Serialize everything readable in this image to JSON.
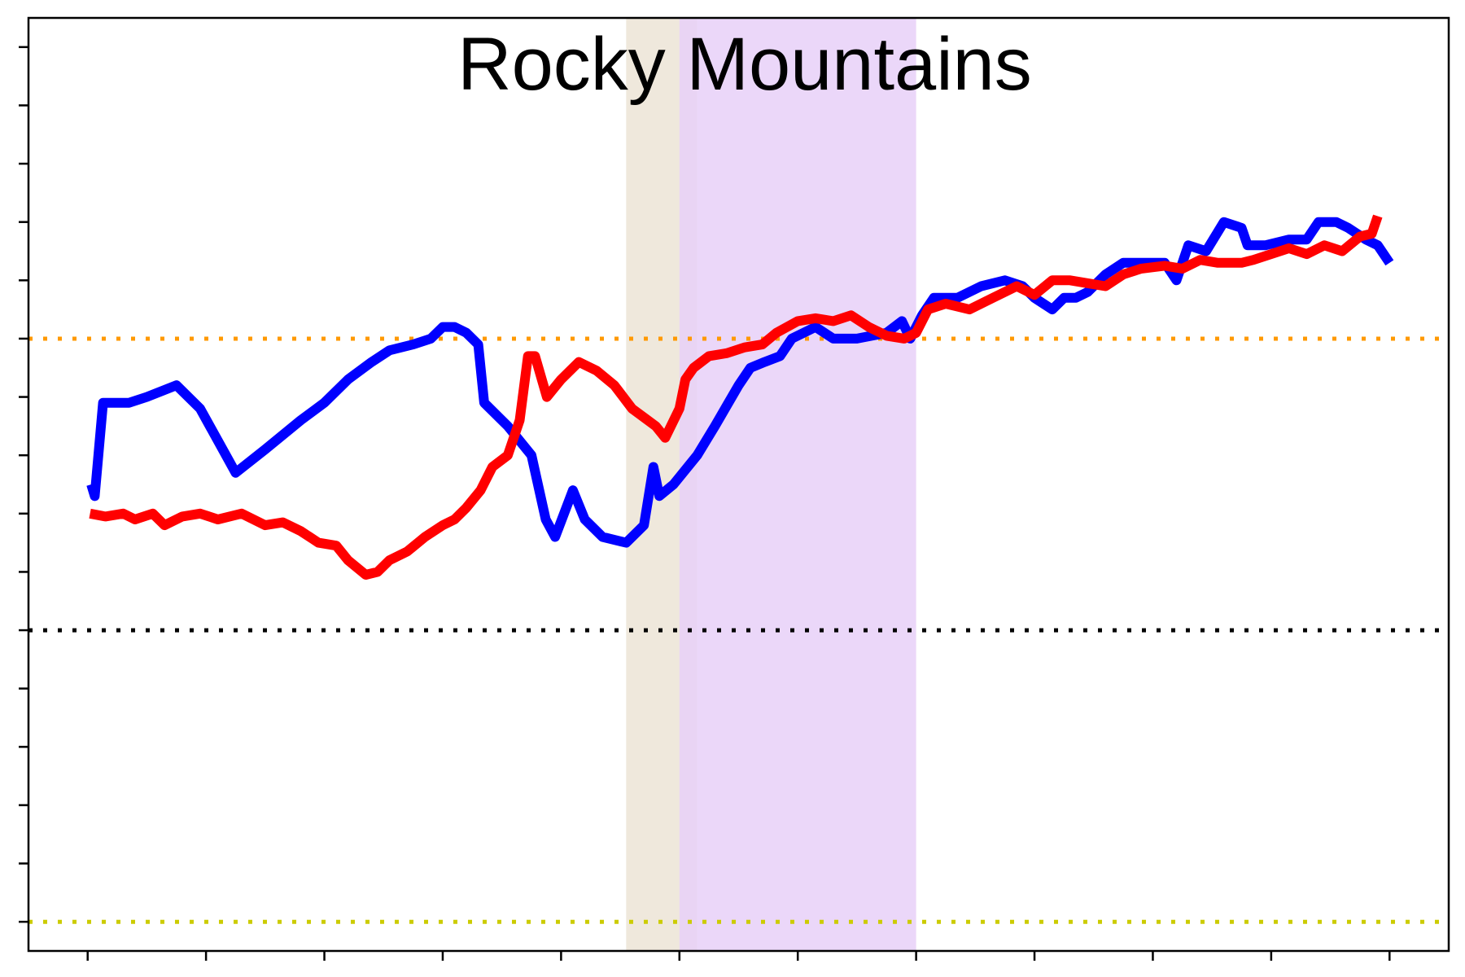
{
  "chart_data": {
    "type": "line",
    "title": "Rocky Mountains",
    "xlabel": "",
    "ylabel": "",
    "xlim": [
      0.5,
      12.5
    ],
    "ylim": [
      -0.5,
      15.5
    ],
    "x_ticks": [
      1,
      2,
      3,
      4,
      5,
      6,
      7,
      8,
      9,
      10,
      11,
      12
    ],
    "y_ticks": [
      0,
      1,
      2,
      3,
      4,
      5,
      6,
      7,
      8,
      9,
      10,
      11,
      12,
      13,
      14,
      15
    ],
    "tick_labels_visible": false,
    "grid": false,
    "legend": "none",
    "reference_lines": [
      {
        "y": 10,
        "color": "#ff9900",
        "style": "dotted"
      },
      {
        "y": 5,
        "color": "#000000",
        "style": "dotted"
      },
      {
        "y": 0,
        "color": "#cccc00",
        "style": "dotted"
      }
    ],
    "shaded_regions": [
      {
        "x": [
          5.55,
          6.15
        ],
        "color": "#ece4d6"
      },
      {
        "x": [
          6.0,
          8.0
        ],
        "color": "#e8d0f8"
      }
    ],
    "series": [
      {
        "color": "#0000ff",
        "points": [
          [
            1.03,
            7.5
          ],
          [
            1.06,
            7.3
          ],
          [
            1.13,
            8.9
          ],
          [
            1.2,
            8.9
          ],
          [
            1.35,
            8.9
          ],
          [
            1.5,
            9.0
          ],
          [
            1.75,
            9.2
          ],
          [
            1.95,
            8.8
          ],
          [
            2.25,
            7.7
          ],
          [
            2.5,
            8.1
          ],
          [
            2.8,
            8.6
          ],
          [
            3.0,
            8.9
          ],
          [
            3.2,
            9.3
          ],
          [
            3.4,
            9.6
          ],
          [
            3.55,
            9.8
          ],
          [
            3.75,
            9.9
          ],
          [
            3.9,
            10.0
          ],
          [
            4.0,
            10.2
          ],
          [
            4.1,
            10.2
          ],
          [
            4.2,
            10.1
          ],
          [
            4.3,
            9.9
          ],
          [
            4.35,
            8.9
          ],
          [
            4.55,
            8.5
          ],
          [
            4.75,
            8.0
          ],
          [
            4.87,
            6.9
          ],
          [
            4.95,
            6.6
          ],
          [
            5.1,
            7.4
          ],
          [
            5.2,
            6.9
          ],
          [
            5.35,
            6.6
          ],
          [
            5.55,
            6.5
          ],
          [
            5.7,
            6.8
          ],
          [
            5.78,
            7.8
          ],
          [
            5.83,
            7.3
          ],
          [
            5.95,
            7.5
          ],
          [
            6.15,
            8.0
          ],
          [
            6.3,
            8.5
          ],
          [
            6.5,
            9.2
          ],
          [
            6.6,
            9.5
          ],
          [
            6.72,
            9.6
          ],
          [
            6.85,
            9.7
          ],
          [
            6.95,
            10.0
          ],
          [
            7.15,
            10.2
          ],
          [
            7.3,
            10.0
          ],
          [
            7.5,
            10.0
          ],
          [
            7.75,
            10.1
          ],
          [
            7.88,
            10.3
          ],
          [
            7.95,
            10.0
          ],
          [
            8.05,
            10.4
          ],
          [
            8.15,
            10.7
          ],
          [
            8.35,
            10.7
          ],
          [
            8.55,
            10.9
          ],
          [
            8.75,
            11.0
          ],
          [
            8.9,
            10.9
          ],
          [
            9.0,
            10.7
          ],
          [
            9.15,
            10.5
          ],
          [
            9.25,
            10.7
          ],
          [
            9.35,
            10.7
          ],
          [
            9.45,
            10.8
          ],
          [
            9.6,
            11.1
          ],
          [
            9.75,
            11.3
          ],
          [
            9.95,
            11.3
          ],
          [
            10.1,
            11.3
          ],
          [
            10.2,
            11.0
          ],
          [
            10.3,
            11.6
          ],
          [
            10.45,
            11.5
          ],
          [
            10.6,
            12.0
          ],
          [
            10.75,
            11.9
          ],
          [
            10.8,
            11.6
          ],
          [
            10.95,
            11.6
          ],
          [
            11.15,
            11.7
          ],
          [
            11.3,
            11.7
          ],
          [
            11.4,
            12.0
          ],
          [
            11.55,
            12.0
          ],
          [
            11.65,
            11.9
          ],
          [
            11.8,
            11.7
          ],
          [
            11.9,
            11.6
          ],
          [
            12.0,
            11.3
          ]
        ]
      },
      {
        "color": "#ff0000",
        "points": [
          [
            1.02,
            7.0
          ],
          [
            1.15,
            6.95
          ],
          [
            1.3,
            7.0
          ],
          [
            1.4,
            6.9
          ],
          [
            1.55,
            7.0
          ],
          [
            1.65,
            6.8
          ],
          [
            1.8,
            6.95
          ],
          [
            1.95,
            7.0
          ],
          [
            2.1,
            6.9
          ],
          [
            2.3,
            7.0
          ],
          [
            2.5,
            6.8
          ],
          [
            2.65,
            6.85
          ],
          [
            2.8,
            6.7
          ],
          [
            2.95,
            6.5
          ],
          [
            3.1,
            6.45
          ],
          [
            3.2,
            6.2
          ],
          [
            3.35,
            5.95
          ],
          [
            3.45,
            6.0
          ],
          [
            3.55,
            6.2
          ],
          [
            3.7,
            6.35
          ],
          [
            3.85,
            6.6
          ],
          [
            4.0,
            6.8
          ],
          [
            4.1,
            6.9
          ],
          [
            4.2,
            7.1
          ],
          [
            4.32,
            7.4
          ],
          [
            4.42,
            7.8
          ],
          [
            4.55,
            8.0
          ],
          [
            4.65,
            8.6
          ],
          [
            4.72,
            9.7
          ],
          [
            4.78,
            9.7
          ],
          [
            4.88,
            9.0
          ],
          [
            5.0,
            9.3
          ],
          [
            5.15,
            9.6
          ],
          [
            5.3,
            9.45
          ],
          [
            5.45,
            9.2
          ],
          [
            5.6,
            8.8
          ],
          [
            5.8,
            8.5
          ],
          [
            5.88,
            8.3
          ],
          [
            6.0,
            8.8
          ],
          [
            6.05,
            9.3
          ],
          [
            6.12,
            9.5
          ],
          [
            6.25,
            9.7
          ],
          [
            6.4,
            9.75
          ],
          [
            6.55,
            9.85
          ],
          [
            6.7,
            9.9
          ],
          [
            6.82,
            10.1
          ],
          [
            7.0,
            10.3
          ],
          [
            7.15,
            10.35
          ],
          [
            7.3,
            10.3
          ],
          [
            7.45,
            10.4
          ],
          [
            7.6,
            10.2
          ],
          [
            7.75,
            10.05
          ],
          [
            7.9,
            10.0
          ],
          [
            8.0,
            10.1
          ],
          [
            8.1,
            10.5
          ],
          [
            8.25,
            10.6
          ],
          [
            8.45,
            10.5
          ],
          [
            8.65,
            10.7
          ],
          [
            8.85,
            10.9
          ],
          [
            9.0,
            10.75
          ],
          [
            9.15,
            11.0
          ],
          [
            9.3,
            11.0
          ],
          [
            9.45,
            10.95
          ],
          [
            9.6,
            10.9
          ],
          [
            9.75,
            11.1
          ],
          [
            9.9,
            11.2
          ],
          [
            10.1,
            11.25
          ],
          [
            10.25,
            11.2
          ],
          [
            10.4,
            11.35
          ],
          [
            10.55,
            11.3
          ],
          [
            10.75,
            11.3
          ],
          [
            10.85,
            11.35
          ],
          [
            11.0,
            11.45
          ],
          [
            11.15,
            11.55
          ],
          [
            11.3,
            11.45
          ],
          [
            11.45,
            11.6
          ],
          [
            11.6,
            11.5
          ],
          [
            11.75,
            11.75
          ],
          [
            11.85,
            11.8
          ],
          [
            11.9,
            12.1
          ]
        ]
      }
    ]
  }
}
